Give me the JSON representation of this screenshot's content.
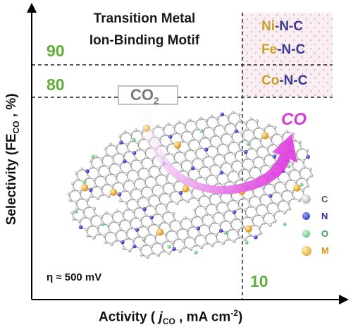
{
  "title": {
    "line1": "Transition Metal",
    "line2": "Ion-Binding Motif"
  },
  "y_thresholds": {
    "high": "90",
    "low": "80"
  },
  "x_threshold": "10",
  "motifs": [
    {
      "metal": "Ni",
      "rest": "-N-C",
      "metal_color": "#c9a227"
    },
    {
      "metal": "Fe",
      "rest": "-N-C",
      "metal_color": "#c9a227"
    },
    {
      "metal": "Co",
      "rest": "-N-C",
      "metal_color": "#c9a227"
    }
  ],
  "reactant": {
    "main": "CO",
    "sub": "2"
  },
  "product": "CO",
  "overpotential": "η ≈ 500 mV",
  "legend": [
    {
      "label": "C",
      "color": "#a9a9a9",
      "text_color": "#555555"
    },
    {
      "label": "N",
      "color": "#2b2bb8",
      "text_color": "#2b2bb8"
    },
    {
      "label": "O",
      "color": "#5fc472",
      "text_color": "#3e9e55"
    },
    {
      "label": "M",
      "color": "#e6a823",
      "text_color": "#d9951a"
    }
  ],
  "axes": {
    "y_main": "Selectivity (FE",
    "y_sub": "CO",
    "y_tail": ", %)",
    "x_pre": "Activity (",
    "x_j": "j",
    "x_sub": "CO",
    "x_mid": ", mA cm",
    "x_sup": "-2",
    "x_tail": ")"
  },
  "colors": {
    "green_label": "#5fae3c",
    "arrow_gradient_start": "#f4c9f4",
    "arrow_gradient_end": "#e23fe2",
    "motif_box_fill": "#f7e9ee",
    "carbon": "#a9a9a9",
    "nitrogen": "#2b2bb8",
    "oxygen": "#5fc472",
    "metal": "#e6a823"
  }
}
